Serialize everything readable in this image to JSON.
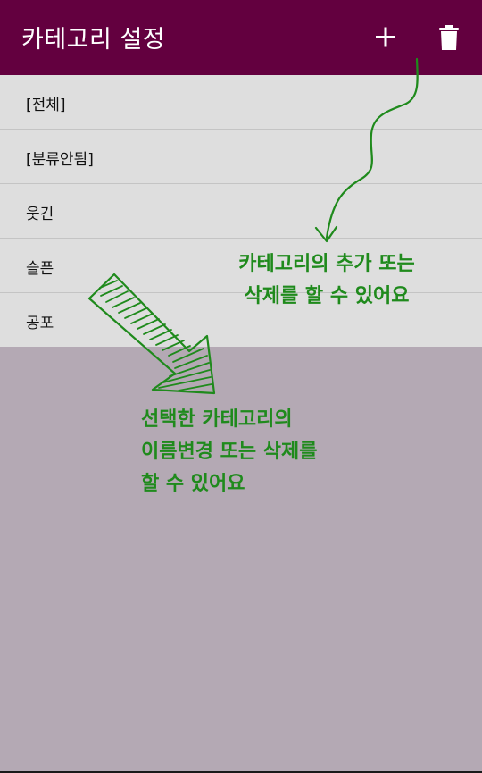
{
  "appbar": {
    "title": "카테고리 설정",
    "add_icon": "plus-icon",
    "delete_icon": "trash-icon",
    "background_color": "#63003f"
  },
  "categories": {
    "items": [
      {
        "label": "[전체]"
      },
      {
        "label": "[분류안됨]"
      },
      {
        "label": "웃긴"
      },
      {
        "label": "슬픈"
      },
      {
        "label": "공포"
      }
    ],
    "background_color": "#dedede"
  },
  "tutorial": {
    "tip_add_delete": {
      "line1": "카테고리의 추가 또는",
      "line2": "삭제를 할 수 있어요"
    },
    "tip_rename_delete": {
      "line1": "선택한 카테고리의",
      "line2": "이름변경 또는 삭제를",
      "line3": "할 수 있어요"
    },
    "annotation_color": "#1f8a1c",
    "overlay_color": "#b4a9b4"
  }
}
